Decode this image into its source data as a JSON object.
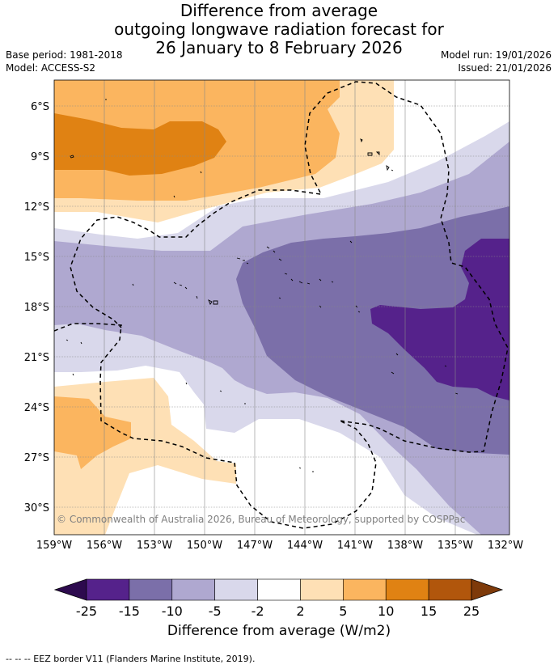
{
  "title": {
    "line1": "Difference from average",
    "line2": "outgoing longwave radiation forecast for",
    "line3": "26 January to 8 February 2026"
  },
  "meta": {
    "base_period": "Base period: 1981-2018",
    "model": "Model: ACCESS-S2",
    "model_run": "Model run: 19/01/2026",
    "issued": "Issued: 21/01/2026"
  },
  "map": {
    "lat_ticks": [
      "6°S",
      "9°S",
      "12°S",
      "15°S",
      "18°S",
      "21°S",
      "24°S",
      "27°S",
      "30°S"
    ],
    "lon_ticks": [
      "159°W",
      "156°W",
      "153°W",
      "150°W",
      "147°W",
      "144°W",
      "141°W",
      "138°W",
      "135°W",
      "132°W"
    ],
    "copyright": "© Commonwealth of Australia 2026, Bureau of Meteorology, supported by COSPPac"
  },
  "colorbar": {
    "ticks": [
      "-25",
      "-15",
      "-10",
      "-5",
      "-2",
      "2",
      "5",
      "10",
      "15",
      "25"
    ],
    "colors": [
      "#55228b",
      "#7b6fa9",
      "#afa8d0",
      "#d9d8eb",
      "#ffffff",
      "#fee0b5",
      "#fbb55f",
      "#e08213",
      "#b1560c"
    ],
    "under_color": "#2d0a4e",
    "over_color": "#7e3a0a",
    "label": "Difference from average (W/m2)"
  },
  "footer": "--  --  -- EEZ border V11 (Flanders Marine Institute, 2019)."
}
